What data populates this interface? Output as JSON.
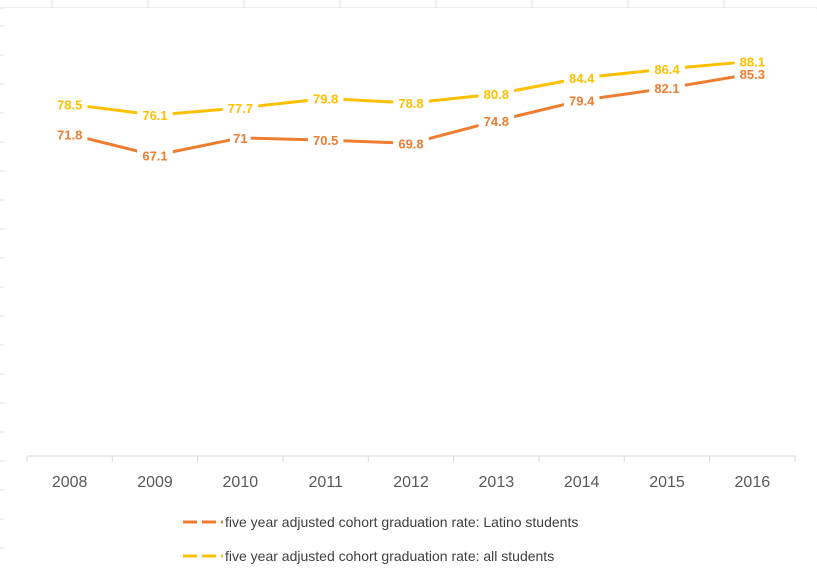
{
  "chart_data": {
    "type": "line",
    "categories": [
      "2008",
      "2009",
      "2010",
      "2011",
      "2012",
      "2013",
      "2014",
      "2015",
      "2016"
    ],
    "ylim": [
      0,
      100
    ],
    "grid": false,
    "legend_position": "bottom",
    "series": [
      {
        "name": "five year adjusted cohort graduation rate: Latino students",
        "color": "#ED7D31",
        "values": [
          71.8,
          67.1,
          71,
          70.5,
          69.8,
          74.8,
          79.4,
          82.1,
          85.3
        ],
        "labels": [
          "71.8",
          "67.1",
          "71",
          "70.5",
          "69.8",
          "74.8",
          "79.4",
          "82.1",
          "85.3"
        ]
      },
      {
        "name": "five year adjusted cohort graduation rate: all students",
        "color": "#FFC000",
        "values": [
          78.5,
          76.1,
          77.7,
          79.8,
          78.8,
          80.8,
          84.4,
          86.4,
          88.1
        ],
        "labels": [
          "78.5",
          "76.1",
          "77.7",
          "79.8",
          "78.8",
          "80.8",
          "84.4",
          "86.4",
          "88.1"
        ]
      }
    ],
    "axis_color": "#D9D9D9",
    "tick_label_color": "#595959"
  }
}
